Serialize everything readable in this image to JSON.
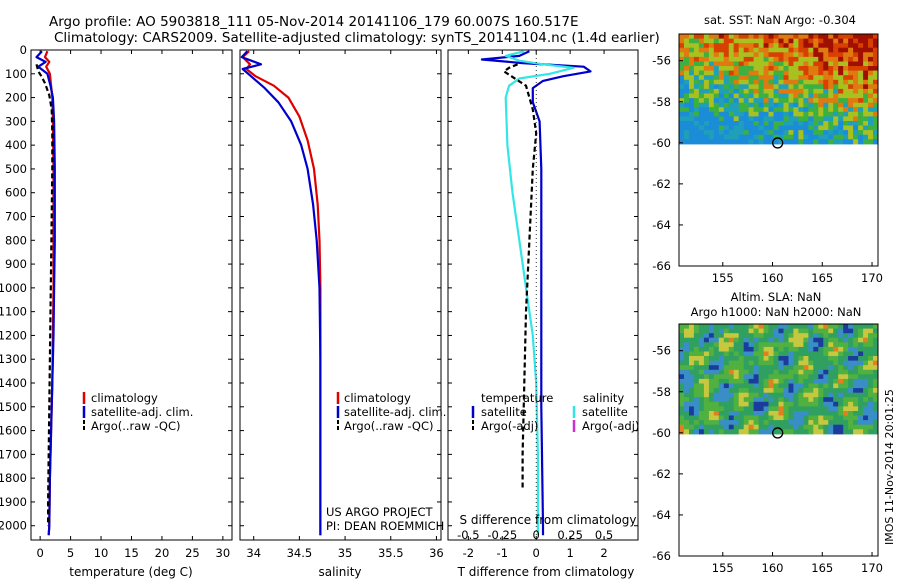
{
  "header": {
    "line1": "Argo profile: AO 5903818_111 05-Nov-2014 20141106_179 60.007S 160.517E",
    "line2": "Climatology: CARS2009. Satellite-adjusted climatology: synTS_20141104.nc (1.4d earlier)"
  },
  "depth_ticks": [
    "0",
    "100",
    "200",
    "300",
    "400",
    "500",
    "600",
    "700",
    "800",
    "900",
    "1000",
    "1100",
    "1200",
    "1300",
    "1400",
    "1500",
    "1600",
    "1700",
    "1800",
    "1900",
    "2000"
  ],
  "colors": {
    "climatology": "#e00000",
    "satellite_blue": "#0000cc",
    "satellite_cyan": "#33e6e6",
    "argo": "#000000",
    "argo_adj_sal": "#cc33cc"
  },
  "chart_data": [
    {
      "type": "line",
      "id": "temperature",
      "xlabel": "temperature (deg C)",
      "xlim": [
        -1.5,
        31.5
      ],
      "ylim": [
        2060,
        0
      ],
      "xticks": [
        "0",
        "5",
        "10",
        "15",
        "20",
        "25",
        "30"
      ],
      "legend": [
        "climatology",
        "satellite-adj. clim.",
        "Argo(..raw -QC)"
      ],
      "series": [
        {
          "name": "climatology",
          "style": "red",
          "points": [
            [
              1.2,
              5
            ],
            [
              0.8,
              30
            ],
            [
              1.5,
              50
            ],
            [
              1.0,
              70
            ],
            [
              1.6,
              100
            ],
            [
              1.8,
              150
            ],
            [
              2.0,
              200
            ],
            [
              2.1,
              300
            ],
            [
              2.2,
              500
            ],
            [
              2.2,
              800
            ],
            [
              2.2,
              1000
            ],
            [
              2.1,
              1200
            ],
            [
              2.0,
              1400
            ],
            [
              1.8,
              1600
            ],
            [
              1.6,
              1800
            ],
            [
              1.5,
              2000
            ],
            [
              1.4,
              2040
            ]
          ]
        },
        {
          "name": "satellite-adj. clim.",
          "style": "blue",
          "points": [
            [
              0.3,
              5
            ],
            [
              -0.6,
              30
            ],
            [
              0.9,
              50
            ],
            [
              -0.3,
              70
            ],
            [
              1.2,
              100
            ],
            [
              1.7,
              150
            ],
            [
              2.1,
              200
            ],
            [
              2.3,
              300
            ],
            [
              2.4,
              500
            ],
            [
              2.4,
              800
            ],
            [
              2.3,
              1000
            ],
            [
              2.2,
              1200
            ],
            [
              2.0,
              1400
            ],
            [
              1.8,
              1600
            ],
            [
              1.6,
              1800
            ],
            [
              1.5,
              2000
            ],
            [
              1.4,
              2040
            ]
          ]
        },
        {
          "name": "Argo(..raw -QC)",
          "style": "dash",
          "points": [
            [
              -0.6,
              60
            ],
            [
              -0.3,
              90
            ],
            [
              0.2,
              110
            ],
            [
              0.8,
              140
            ],
            [
              1.5,
              190
            ],
            [
              1.9,
              250
            ],
            [
              2.0,
              350
            ],
            [
              2.0,
              500
            ],
            [
              1.9,
              700
            ],
            [
              1.8,
              900
            ],
            [
              1.7,
              1100
            ],
            [
              1.6,
              1300
            ],
            [
              1.5,
              1500
            ],
            [
              1.4,
              1700
            ],
            [
              1.3,
              1900
            ],
            [
              1.3,
              2000
            ]
          ]
        }
      ]
    },
    {
      "type": "line",
      "id": "salinity",
      "xlabel": "salinity",
      "xlim": [
        33.85,
        36.05
      ],
      "ylim": [
        2060,
        0
      ],
      "xticks": [
        "34",
        "34.5",
        "35",
        "35.5",
        "36"
      ],
      "legend": [
        "climatology",
        "satellite-adj. clim.",
        "Argo(..raw -QC)"
      ],
      "annotation": [
        "US ARGO PROJECT",
        "PI: DEAN ROEMMICH"
      ],
      "series": [
        {
          "name": "climatology",
          "style": "red",
          "points": [
            [
              33.95,
              5
            ],
            [
              33.88,
              30
            ],
            [
              33.96,
              60
            ],
            [
              33.92,
              80
            ],
            [
              34.02,
              110
            ],
            [
              34.22,
              150
            ],
            [
              34.38,
              200
            ],
            [
              34.5,
              280
            ],
            [
              34.59,
              380
            ],
            [
              34.66,
              500
            ],
            [
              34.7,
              650
            ],
            [
              34.72,
              800
            ],
            [
              34.73,
              1000
            ],
            [
              34.73,
              1300
            ],
            [
              34.73,
              1600
            ],
            [
              34.73,
              1900
            ],
            [
              34.73,
              2040
            ]
          ]
        },
        {
          "name": "satellite-adj. clim.",
          "style": "blue",
          "points": [
            [
              33.93,
              5
            ],
            [
              33.87,
              30
            ],
            [
              34.08,
              60
            ],
            [
              33.88,
              80
            ],
            [
              33.97,
              110
            ],
            [
              34.12,
              160
            ],
            [
              34.27,
              220
            ],
            [
              34.41,
              300
            ],
            [
              34.52,
              400
            ],
            [
              34.59,
              500
            ],
            [
              34.65,
              650
            ],
            [
              34.69,
              800
            ],
            [
              34.72,
              1000
            ],
            [
              34.73,
              1300
            ],
            [
              34.73,
              1600
            ],
            [
              34.73,
              1900
            ],
            [
              34.73,
              2040
            ]
          ]
        }
      ]
    },
    {
      "type": "line",
      "id": "difference",
      "xlabel": "T difference from climatology",
      "top_label": "S difference from climatology",
      "xlim": [
        -2.6,
        3.0
      ],
      "ylim": [
        2060,
        0
      ],
      "xticks_T": [
        "-2",
        "-1",
        "0",
        "1",
        "2"
      ],
      "xticks_S": [
        "-0.5",
        "-0.25",
        "0",
        "0.25",
        "0.5"
      ],
      "legend_titles": [
        "temperature",
        "salinity"
      ],
      "legend": [
        "satellite",
        "Argo(-adj)",
        "satellite",
        "Argo(-adj)"
      ],
      "series": [
        {
          "name": "temperature satellite",
          "style": "blue",
          "points": [
            [
              -0.2,
              5
            ],
            [
              -0.5,
              25
            ],
            [
              -1.6,
              40
            ],
            [
              -0.4,
              55
            ],
            [
              1.4,
              70
            ],
            [
              1.6,
              90
            ],
            [
              0.8,
              110
            ],
            [
              0.2,
              130
            ],
            [
              -0.1,
              160
            ],
            [
              -0.1,
              220
            ],
            [
              0.1,
              300
            ],
            [
              0.15,
              500
            ],
            [
              0.15,
              1000
            ],
            [
              0.15,
              1500
            ],
            [
              0.2,
              2000
            ],
            [
              0.2,
              2040
            ]
          ]
        },
        {
          "name": "salinity satellite",
          "style": "cyan",
          "points": [
            [
              -0.35,
              5
            ],
            [
              -0.9,
              25
            ],
            [
              -0.5,
              45
            ],
            [
              0.2,
              60
            ],
            [
              1.1,
              75
            ],
            [
              0.4,
              100
            ],
            [
              -0.5,
              120
            ],
            [
              -0.8,
              150
            ],
            [
              -0.9,
              200
            ],
            [
              -0.85,
              400
            ],
            [
              -0.7,
              600
            ],
            [
              -0.5,
              800
            ],
            [
              -0.3,
              1000
            ],
            [
              -0.1,
              1200
            ],
            [
              0.0,
              1400
            ],
            [
              0.05,
              1700
            ],
            [
              0.05,
              2040
            ]
          ]
        },
        {
          "name": "temperature Argo(-adj)",
          "style": "dash",
          "points": [
            [
              -0.55,
              60
            ],
            [
              -0.8,
              75
            ],
            [
              -0.95,
              90
            ],
            [
              -0.3,
              150
            ],
            [
              -0.1,
              250
            ],
            [
              0.0,
              350
            ],
            [
              -0.1,
              500
            ],
            [
              -0.2,
              800
            ],
            [
              -0.3,
              1100
            ],
            [
              -0.35,
              1400
            ],
            [
              -0.4,
              1700
            ],
            [
              -0.4,
              1850
            ]
          ]
        }
      ]
    }
  ],
  "maps": [
    {
      "title": "sat. SST: NaN Argo: -0.304",
      "xticks": [
        "155",
        "160",
        "165",
        "170"
      ],
      "yticks": [
        "-56",
        "-58",
        "-60",
        "-62",
        "-64",
        "-66"
      ],
      "colormap": "sst"
    },
    {
      "title_line1": "Altim. SLA: NaN",
      "title_line2": "Argo h1000: NaN h2000: NaN",
      "xticks": [
        "155",
        "160",
        "165",
        "170"
      ],
      "yticks": [
        "-56",
        "-58",
        "-60",
        "-62",
        "-64",
        "-66"
      ],
      "colormap": "sla"
    }
  ],
  "footer_stamp": "IMOS 11-Nov-2014 20:01:25"
}
